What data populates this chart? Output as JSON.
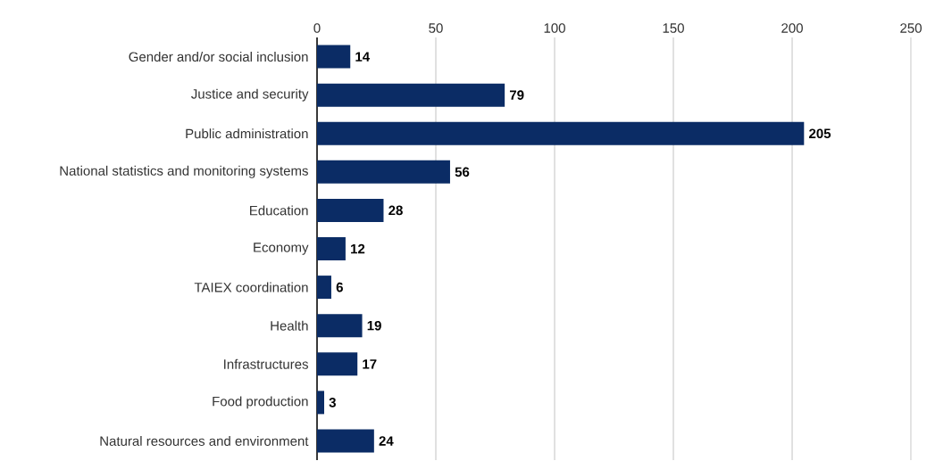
{
  "chart_data": {
    "type": "bar",
    "orientation": "horizontal",
    "categories": [
      "Gender and/or social inclusion",
      "Justice and security",
      "Public administration",
      "National statistics and monitoring systems",
      "Education",
      "Economy",
      "TAIEX coordination",
      "Health",
      "Infrastructures",
      "Food production",
      "Natural resources and environment"
    ],
    "values": [
      14,
      79,
      205,
      56,
      28,
      12,
      6,
      19,
      17,
      3,
      24
    ],
    "color": "#0b2c65",
    "xlim": [
      0,
      250
    ],
    "xticks": [
      0,
      50,
      100,
      150,
      200,
      250
    ],
    "grid": "x",
    "data_labels": true
  }
}
